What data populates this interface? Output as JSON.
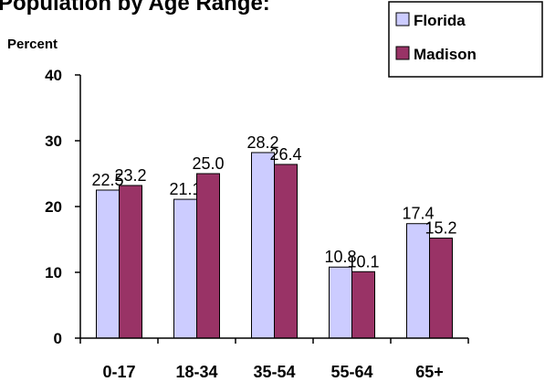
{
  "colors": {
    "florida": "#CCCCFF",
    "madison": "#993366",
    "axis": "#000000",
    "background": "#FFFFFF"
  },
  "chart_data": {
    "type": "bar",
    "title": "Population by Age Range:",
    "ylabel": "Percent",
    "xlabel": "",
    "categories": [
      "0-17",
      "18-34",
      "35-54",
      "55-64",
      "65+"
    ],
    "series": [
      {
        "name": "Florida",
        "values": [
          22.5,
          21.1,
          28.2,
          10.8,
          17.4
        ],
        "labels": [
          "22.5",
          "21.1",
          "28.2",
          "10.8",
          "17.4"
        ]
      },
      {
        "name": "Madison",
        "values": [
          23.2,
          25.0,
          26.4,
          10.1,
          15.2
        ],
        "labels": [
          "23.2",
          "25.0",
          "26.4",
          "10.1",
          "15.2"
        ]
      }
    ],
    "ylim": [
      0,
      40
    ],
    "yticks": [
      0,
      10,
      20,
      30,
      40
    ],
    "grid": false,
    "legend": "top-right"
  }
}
